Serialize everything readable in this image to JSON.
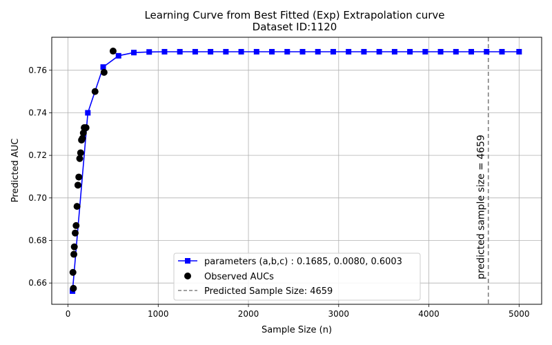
{
  "chart_data": {
    "type": "line",
    "title": "Learning Curve from Best Fitted (Exp) Extrapolation curve",
    "subtitle": "Dataset ID:1120",
    "xlabel": "Sample Size (n)",
    "ylabel": "Predicted AUC",
    "xlim": [
      -180,
      5250
    ],
    "ylim": [
      0.65,
      0.7755
    ],
    "x_ticks": [
      0,
      1000,
      2000,
      3000,
      4000,
      5000
    ],
    "y_ticks": [
      0.66,
      0.68,
      0.7,
      0.72,
      0.74,
      0.76
    ],
    "x_tick_labels": [
      "0",
      "1000",
      "2000",
      "3000",
      "4000",
      "5000"
    ],
    "y_tick_labels": [
      "0.66",
      "0.68",
      "0.70",
      "0.72",
      "0.74",
      "0.76"
    ],
    "grid": true,
    "legend_placement": "lower-center",
    "series": [
      {
        "name": "parameters (a,b,c) : 0.1685, 0.0080, 0.6003",
        "kind": "line-square",
        "color": "#0000ff",
        "x": [
          50,
          220,
          390,
          560,
          730,
          900,
          1070,
          1240,
          1410,
          1580,
          1750,
          1920,
          2090,
          2260,
          2430,
          2600,
          2770,
          2940,
          3110,
          3280,
          3450,
          3620,
          3790,
          3960,
          4130,
          4300,
          4470,
          4640,
          4810,
          5000
        ],
        "y": [
          0.6562,
          0.74,
          0.7615,
          0.7668,
          0.7683,
          0.7686,
          0.7687,
          0.7687,
          0.7687,
          0.7687,
          0.7687,
          0.7687,
          0.7687,
          0.7687,
          0.7687,
          0.7687,
          0.7687,
          0.7687,
          0.7687,
          0.7687,
          0.7687,
          0.7687,
          0.7687,
          0.7687,
          0.7687,
          0.7687,
          0.7687,
          0.7687,
          0.7687,
          0.7687
        ]
      },
      {
        "name": "Observed AUCs",
        "kind": "scatter",
        "color": "#000000",
        "x": [
          55,
          60,
          65,
          70,
          80,
          90,
          100,
          110,
          120,
          130,
          140,
          150,
          160,
          170,
          180,
          190,
          200,
          300,
          400,
          500
        ],
        "y": [
          0.665,
          0.6575,
          0.6735,
          0.677,
          0.6835,
          0.687,
          0.696,
          0.706,
          0.7098,
          0.7185,
          0.7212,
          0.7272,
          0.728,
          0.7305,
          0.733,
          0.7328,
          0.733,
          0.75,
          0.759,
          0.769
        ]
      }
    ],
    "vline": {
      "name": "Predicted Sample Size: 4659",
      "x": 4659,
      "color": "#808080",
      "annotation": "predicted sample size = 4659"
    }
  }
}
